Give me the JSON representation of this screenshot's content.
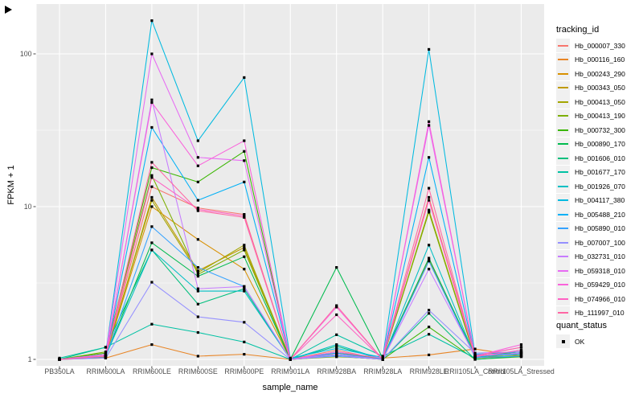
{
  "plot": {
    "x_axis_title": "sample_name",
    "y_axis_title": "FPKM + 1"
  },
  "legend": {
    "tracking_title": "tracking_id",
    "quant_title": "quant_status",
    "quant_ok_label": "OK"
  },
  "chart_data": {
    "type": "line",
    "title": "",
    "xlabel": "sample_name",
    "ylabel": "FPKM + 1",
    "y_scale": "log10",
    "y_ticks": [
      1,
      10,
      100
    ],
    "y_tick_labels": [
      "1",
      "10",
      "100"
    ],
    "y_minor_ticks": [
      3.162,
      31.62
    ],
    "ylim": [
      0.9,
      200
    ],
    "grid": "white major and minor on gray panel",
    "legend_position": "right",
    "panel_background": "#EBEBEB",
    "point_shape": "filled-black-square",
    "categories": [
      "PB350LA",
      "RRIM600LA",
      "RRIM600LE",
      "RRIM600SE",
      "RRIM600PE",
      "RRIM901LA",
      "RRIM928BA",
      "RRIM928LA",
      "RRIM928LE",
      "RRII105LA_Control",
      "RRII105LA_Stressed"
    ],
    "series": [
      {
        "name": "Hb_000007_330",
        "color": "#F8766D",
        "values": [
          1.0,
          1.05,
          13.5,
          9.8,
          8.9,
          1.0,
          1.15,
          1.0,
          11.5,
          1.05,
          1.1
        ]
      },
      {
        "name": "Hb_000116_160",
        "color": "#E88526",
        "values": [
          1.0,
          1.02,
          1.25,
          1.05,
          1.08,
          1.0,
          1.1,
          1.02,
          1.07,
          1.17,
          1.05
        ]
      },
      {
        "name": "Hb_000243_290",
        "color": "#D89000",
        "values": [
          1.0,
          1.05,
          10.0,
          6.1,
          3.9,
          1.0,
          1.12,
          1.0,
          4.5,
          1.05,
          1.08
        ]
      },
      {
        "name": "Hb_000343_050",
        "color": "#C09B00",
        "values": [
          1.0,
          1.03,
          11.5,
          3.8,
          5.4,
          1.0,
          1.08,
          1.0,
          9.3,
          1.02,
          1.05
        ]
      },
      {
        "name": "Hb_000413_050",
        "color": "#A3A500",
        "values": [
          1.0,
          1.06,
          11.0,
          3.7,
          5.6,
          1.0,
          1.05,
          1.0,
          9.5,
          1.03,
          1.06
        ]
      },
      {
        "name": "Hb_000413_190",
        "color": "#7CAE00",
        "values": [
          1.0,
          1.12,
          16.0,
          3.6,
          5.2,
          1.0,
          1.04,
          1.01,
          9.2,
          1.02,
          1.1
        ]
      },
      {
        "name": "Hb_000732_300",
        "color": "#39B600",
        "values": [
          1.0,
          1.1,
          18.0,
          14.5,
          23.0,
          1.0,
          1.05,
          1.0,
          1.63,
          1.0,
          1.04
        ]
      },
      {
        "name": "Hb_000890_170",
        "color": "#00BB4E",
        "values": [
          1.0,
          1.05,
          5.8,
          3.5,
          4.7,
          1.0,
          4.0,
          1.02,
          4.6,
          1.05,
          1.12
        ]
      },
      {
        "name": "Hb_001606_010",
        "color": "#00BF7D",
        "values": [
          1.0,
          1.2,
          5.2,
          2.3,
          2.9,
          1.0,
          1.22,
          1.0,
          2.0,
          1.0,
          1.05
        ]
      },
      {
        "name": "Hb_001677_170",
        "color": "#00C1A3",
        "values": [
          1.02,
          1.2,
          1.7,
          1.5,
          1.3,
          1.0,
          1.45,
          1.05,
          1.46,
          1.02,
          1.15
        ]
      },
      {
        "name": "Hb_001926_070",
        "color": "#00BFC4",
        "values": [
          1.0,
          1.05,
          5.2,
          2.8,
          2.8,
          1.0,
          1.25,
          1.0,
          5.6,
          1.04,
          1.1
        ]
      },
      {
        "name": "Hb_004117_380",
        "color": "#00BAE0",
        "values": [
          1.0,
          1.08,
          165,
          27,
          70,
          1.02,
          1.18,
          1.03,
          107,
          1.08,
          1.12
        ]
      },
      {
        "name": "Hb_005488_210",
        "color": "#00B0F6",
        "values": [
          1.0,
          1.05,
          33,
          11,
          14.5,
          1.0,
          1.1,
          1.0,
          21,
          1.05,
          1.08
        ]
      },
      {
        "name": "Hb_005890_010",
        "color": "#35A2FF",
        "values": [
          1.0,
          1.04,
          7.4,
          4.0,
          3.0,
          1.0,
          1.06,
          1.0,
          4.4,
          1.03,
          1.05
        ]
      },
      {
        "name": "Hb_007007_100",
        "color": "#9590FF",
        "values": [
          1.0,
          1.02,
          3.2,
          1.9,
          1.75,
          1.0,
          1.05,
          1.0,
          2.1,
          1.1,
          1.12
        ]
      },
      {
        "name": "Hb_032731_010",
        "color": "#C77CFF",
        "values": [
          1.0,
          1.05,
          50,
          2.9,
          3.0,
          1.0,
          1.08,
          1.0,
          3.9,
          1.05,
          1.1
        ]
      },
      {
        "name": "Hb_059318_010",
        "color": "#E76BF3",
        "values": [
          1.0,
          1.08,
          100,
          21,
          20,
          1.0,
          1.12,
          1.02,
          34,
          1.06,
          1.2
        ]
      },
      {
        "name": "Hb_059429_010",
        "color": "#FA62DB",
        "values": [
          1.0,
          1.06,
          48,
          18.5,
          27,
          1.0,
          2.2,
          1.0,
          36,
          1.05,
          1.25
        ]
      },
      {
        "name": "Hb_074966_010",
        "color": "#FF61C3",
        "values": [
          1.0,
          1.05,
          15.5,
          9.6,
          8.7,
          1.0,
          1.96,
          1.0,
          11.0,
          1.04,
          1.15
        ]
      },
      {
        "name": "Hb_111997_010",
        "color": "#FF67A4",
        "values": [
          1.0,
          1.05,
          19.5,
          9.4,
          8.5,
          1.0,
          2.25,
          1.0,
          13.2,
          1.05,
          1.2
        ]
      }
    ],
    "colors": {
      "panel": "#EBEBEB",
      "gridline": "#FFFFFF",
      "tick_text": "#4D4D4D",
      "point": "#000000"
    }
  }
}
